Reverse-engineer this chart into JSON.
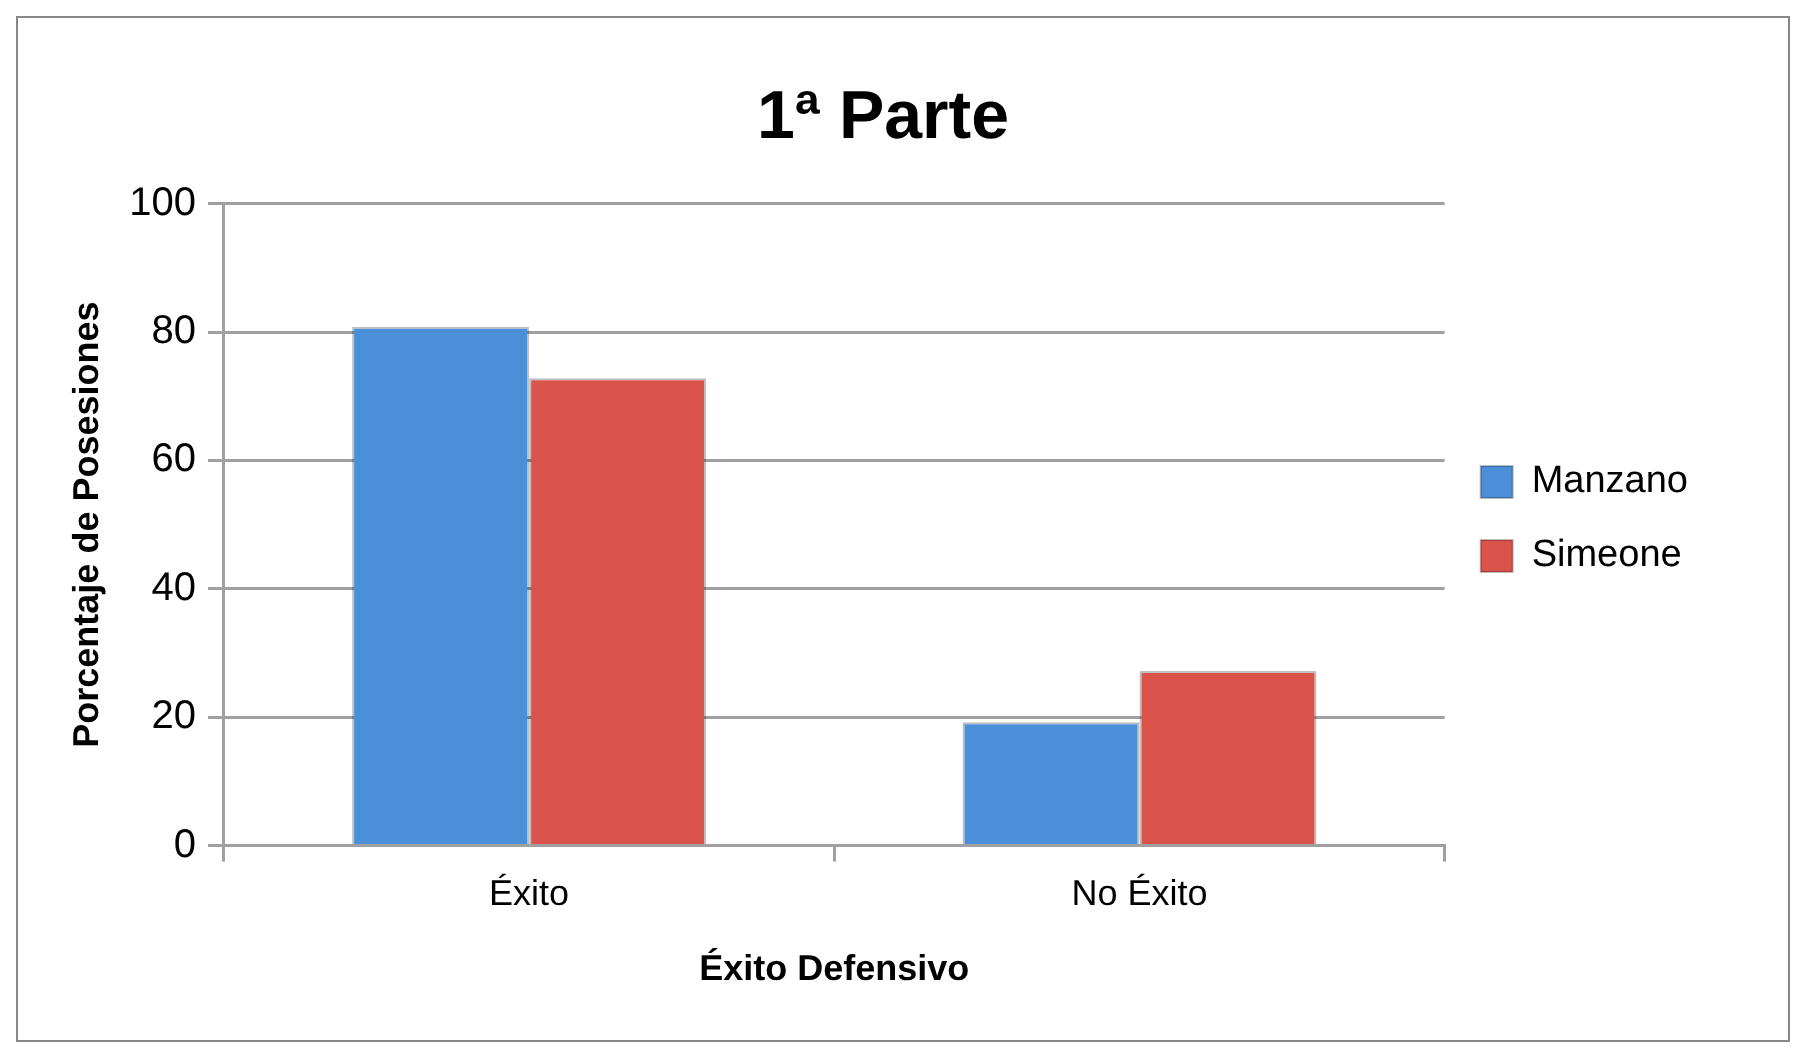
{
  "chart_data": {
    "type": "bar",
    "title": "1ª Parte",
    "xlabel": "Éxito Defensivo",
    "ylabel": "Porcentaje de Posesiones",
    "categories": [
      "Éxito",
      "No Éxito"
    ],
    "series": [
      {
        "name": "Manzano",
        "color": "#4a8fd8",
        "values": [
          80.8,
          19.2
        ]
      },
      {
        "name": "Simeone",
        "color": "#d9534a",
        "values": [
          72.8,
          27.2
        ]
      }
    ],
    "ylim": [
      0,
      100
    ],
    "yticks": [
      0,
      20,
      40,
      60,
      80,
      100
    ],
    "grid": "y",
    "legend": "right"
  }
}
